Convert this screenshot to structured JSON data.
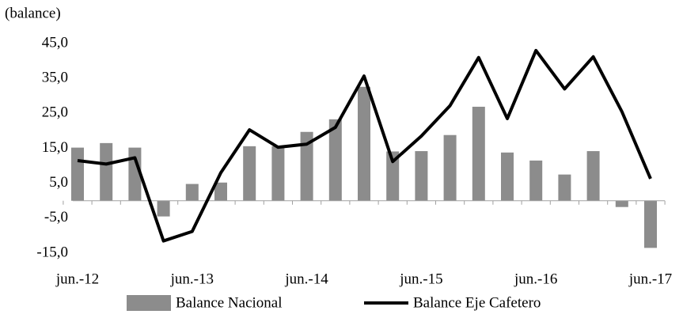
{
  "chart_data": {
    "type": "bar",
    "y_label": "(balance)",
    "categories": [
      "jun.-12",
      null,
      null,
      null,
      "jun.-13",
      null,
      null,
      null,
      "jun.-14",
      null,
      null,
      null,
      "jun.-15",
      null,
      null,
      null,
      "jun.-16",
      null,
      null,
      null,
      "jun.-17"
    ],
    "series": [
      {
        "name": "Balance Nacional",
        "type": "bar",
        "color": "#8c8c8c",
        "values": [
          15.2,
          16.5,
          15.2,
          -4.5,
          4.8,
          5.2,
          15.6,
          15.6,
          19.7,
          23.3,
          32.6,
          14.1,
          14.2,
          18.8,
          26.9,
          13.8,
          11.5,
          7.5,
          14.2,
          -1.8,
          -13.5
        ]
      },
      {
        "name": "Balance Eje Cafetero",
        "type": "line",
        "color": "#000000",
        "values": [
          11.5,
          10.5,
          12.3,
          -11.5,
          -8.8,
          8.0,
          20.3,
          15.3,
          16.2,
          21.0,
          35.7,
          11.2,
          18.5,
          27.2,
          41.0,
          23.5,
          43.0,
          32.0,
          41.2,
          25.5,
          6.3
        ]
      }
    ],
    "ylim": [
      -15,
      45
    ],
    "yticks": [
      {
        "value": -15,
        "label": "-15,0"
      },
      {
        "value": -5,
        "label": "-5,0"
      },
      {
        "value": 5,
        "label": "5,0"
      },
      {
        "value": 15,
        "label": "15,0"
      },
      {
        "value": 25,
        "label": "25,0"
      },
      {
        "value": 35,
        "label": "35,0"
      },
      {
        "value": 45,
        "label": "45,0"
      }
    ]
  }
}
